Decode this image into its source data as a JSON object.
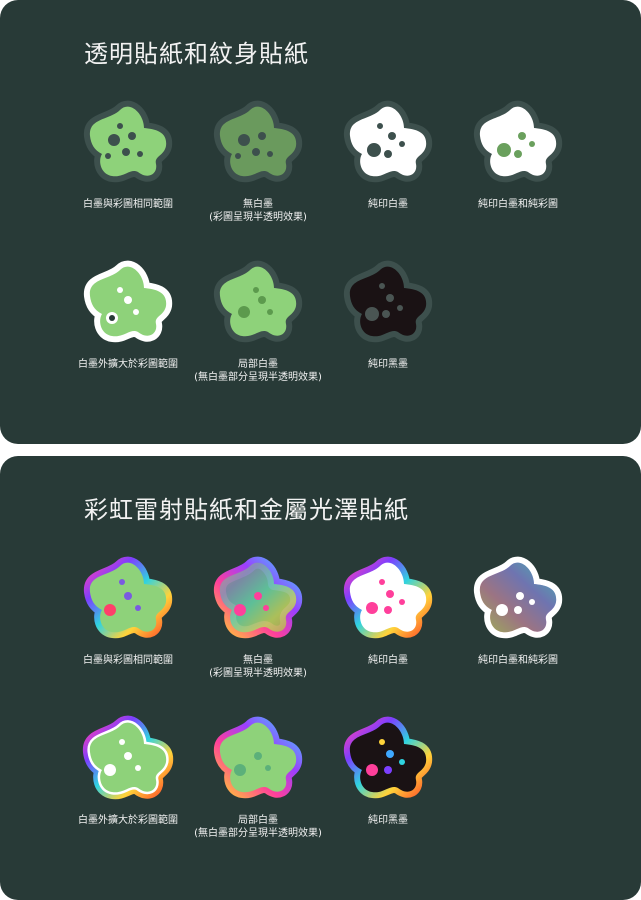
{
  "colors": {
    "background": "#283a37",
    "text": "#f2f2f2",
    "sticker_green": "#8ed27a",
    "sticker_dark": "#1a1214",
    "white_ink": "#ffffff"
  },
  "sections": [
    {
      "title": "透明貼紙和紋身貼紙",
      "items": [
        {
          "line1": "白墨與彩圖相同範圍",
          "line2": "",
          "variant": "green-same-white",
          "icon": "blob-sticker-icon"
        },
        {
          "line1": "無白墨",
          "line2": "(彩圖呈現半透明效果)",
          "variant": "green-no-white",
          "icon": "blob-sticker-icon"
        },
        {
          "line1": "純印白墨",
          "line2": "",
          "variant": "white-only",
          "icon": "blob-sticker-icon"
        },
        {
          "line1": "純印白墨和純彩圖",
          "line2": "",
          "variant": "white-and-color",
          "icon": "blob-sticker-icon"
        },
        {
          "line1": "白墨外擴大於彩圖範圍",
          "line2": "",
          "variant": "white-expanded",
          "icon": "blob-sticker-icon"
        },
        {
          "line1": "局部白墨",
          "line2": "(無白墨部分呈現半透明效果)",
          "variant": "partial-white",
          "icon": "blob-sticker-icon"
        },
        {
          "line1": "純印黑墨",
          "line2": "",
          "variant": "black-only",
          "icon": "blob-sticker-icon"
        }
      ]
    },
    {
      "title": "彩虹雷射貼紙和金屬光澤貼紙",
      "items": [
        {
          "line1": "白墨與彩圖相同範圍",
          "line2": "",
          "variant": "rainbow-same-white",
          "icon": "rainbow-blob-sticker-icon"
        },
        {
          "line1": "無白墨",
          "line2": "(彩圖呈現半透明效果)",
          "variant": "rainbow-no-white",
          "icon": "rainbow-blob-sticker-icon"
        },
        {
          "line1": "純印白墨",
          "line2": "",
          "variant": "rainbow-white-only",
          "icon": "rainbow-blob-sticker-icon"
        },
        {
          "line1": "純印白墨和純彩圖",
          "line2": "",
          "variant": "rainbow-white-and-color",
          "icon": "rainbow-blob-sticker-icon"
        },
        {
          "line1": "白墨外擴大於彩圖範圍",
          "line2": "",
          "variant": "rainbow-white-expanded",
          "icon": "rainbow-blob-sticker-icon"
        },
        {
          "line1": "局部白墨",
          "line2": "(無白墨部分呈現半透明效果)",
          "variant": "rainbow-partial-white",
          "icon": "rainbow-blob-sticker-icon"
        },
        {
          "line1": "純印黑墨",
          "line2": "",
          "variant": "rainbow-black-only",
          "icon": "rainbow-blob-sticker-icon"
        }
      ]
    }
  ]
}
